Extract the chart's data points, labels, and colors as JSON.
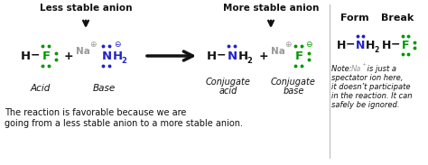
{
  "bg_color": "#ffffff",
  "title_less": "Less stable anion",
  "title_more": "More stable anion",
  "note_text_line1": "Note: ",
  "note_na": "Na",
  "note_text_line1b": " is just a",
  "note_line2": "spectator ion here,",
  "note_line3": "it doesn’t participate",
  "note_line4": "in the reaction. It can",
  "note_line5": "safely be ignored.",
  "bottom_text": "The reaction is favorable because we are\ngoing from a less stable anion to a more stable anion.",
  "color_green": "#009900",
  "color_blue": "#2222cc",
  "color_gray": "#999999",
  "color_black": "#111111"
}
